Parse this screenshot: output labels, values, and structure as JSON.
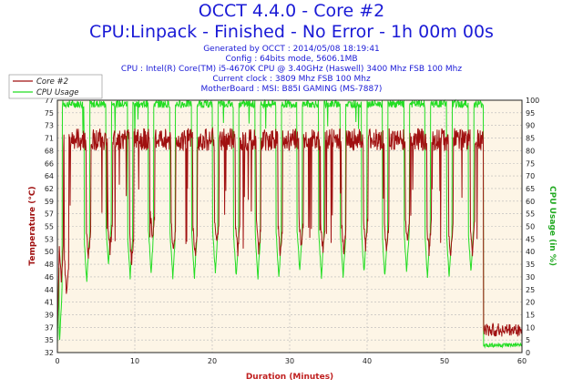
{
  "chart_data": {
    "type": "line",
    "title": "OCCT 4.4.0 - Core #2",
    "subtitle": "CPU:Linpack - Finished - No Error - 1h 00m 00s",
    "info_lines": [
      "Generated by OCCT : 2014/05/08 18:19:41",
      "Config : 64bits mode, 5606.1MB",
      "CPU : Intel(R) Core(TM) i5-4670K CPU @ 3.40GHz (Haswell) 3400 Mhz FSB 100 Mhz",
      "Current clock : 3809 Mhz FSB 100 Mhz",
      "MotherBoard : MSI: B85I GAMING (MS-7887)"
    ],
    "xlabel": "Duration (Minutes)",
    "ylabel_left": "Temperature (°C)",
    "ylabel_right": "CPU Usage (in %)",
    "xlim": [
      0,
      60
    ],
    "ylim_left": [
      32,
      77
    ],
    "ylim_right": [
      0,
      100
    ],
    "x_ticks": [
      "0",
      "10",
      "20",
      "30",
      "40",
      "50",
      "60"
    ],
    "y_ticks_left": [
      "32",
      "35",
      "37",
      "39",
      "41",
      "44",
      "46",
      "48",
      "50",
      "53",
      "55",
      "57",
      "59",
      "62",
      "64",
      "66",
      "68",
      "71",
      "73",
      "75",
      "77"
    ],
    "y_ticks_right": [
      "0",
      "5",
      "10",
      "15",
      "20",
      "25",
      "30",
      "35",
      "40",
      "45",
      "50",
      "55",
      "60",
      "65",
      "70",
      "75",
      "80",
      "85",
      "90",
      "95",
      "100"
    ],
    "grid": true,
    "legend_position": "top-left",
    "background_color": "#fdf5e6",
    "series": [
      {
        "name": "Core #2",
        "axis": "left",
        "color": "#a01010",
        "load_level_c": 71,
        "idle_level_c": 36,
        "end_x": 55,
        "dips": [
          [
            0.5,
            45
          ],
          [
            1.2,
            42
          ],
          [
            4,
            49
          ],
          [
            6.8,
            50
          ],
          [
            9.6,
            48
          ],
          [
            12.3,
            52
          ],
          [
            15,
            50
          ],
          [
            17.8,
            49
          ],
          [
            20.6,
            51
          ],
          [
            23.3,
            50
          ],
          [
            26,
            50
          ],
          [
            28.8,
            49
          ],
          [
            31.5,
            51
          ],
          [
            34.3,
            50
          ],
          [
            37,
            50
          ],
          [
            39.8,
            51
          ],
          [
            42.5,
            50
          ],
          [
            45.2,
            52
          ],
          [
            48,
            50
          ],
          [
            50.8,
            49
          ],
          [
            53.6,
            50
          ],
          [
            55.5,
            40
          ]
        ]
      },
      {
        "name": "CPU Usage",
        "axis": "right",
        "color": "#22dd22",
        "load_level_pct": 100,
        "idle_level_pct": 3,
        "end_x": 55,
        "dips": [
          [
            0.3,
            5
          ],
          [
            3.8,
            28
          ],
          [
            6.6,
            35
          ],
          [
            9.4,
            30
          ],
          [
            12.1,
            32
          ],
          [
            14.9,
            30
          ],
          [
            17.7,
            30
          ],
          [
            20.4,
            32
          ],
          [
            23.1,
            30
          ],
          [
            25.9,
            30
          ],
          [
            28.6,
            30
          ],
          [
            31.3,
            32
          ],
          [
            34.1,
            30
          ],
          [
            36.9,
            30
          ],
          [
            39.6,
            32
          ],
          [
            42.3,
            30
          ],
          [
            45.1,
            32
          ],
          [
            47.8,
            30
          ],
          [
            50.6,
            30
          ],
          [
            53.4,
            32
          ]
        ]
      }
    ]
  }
}
